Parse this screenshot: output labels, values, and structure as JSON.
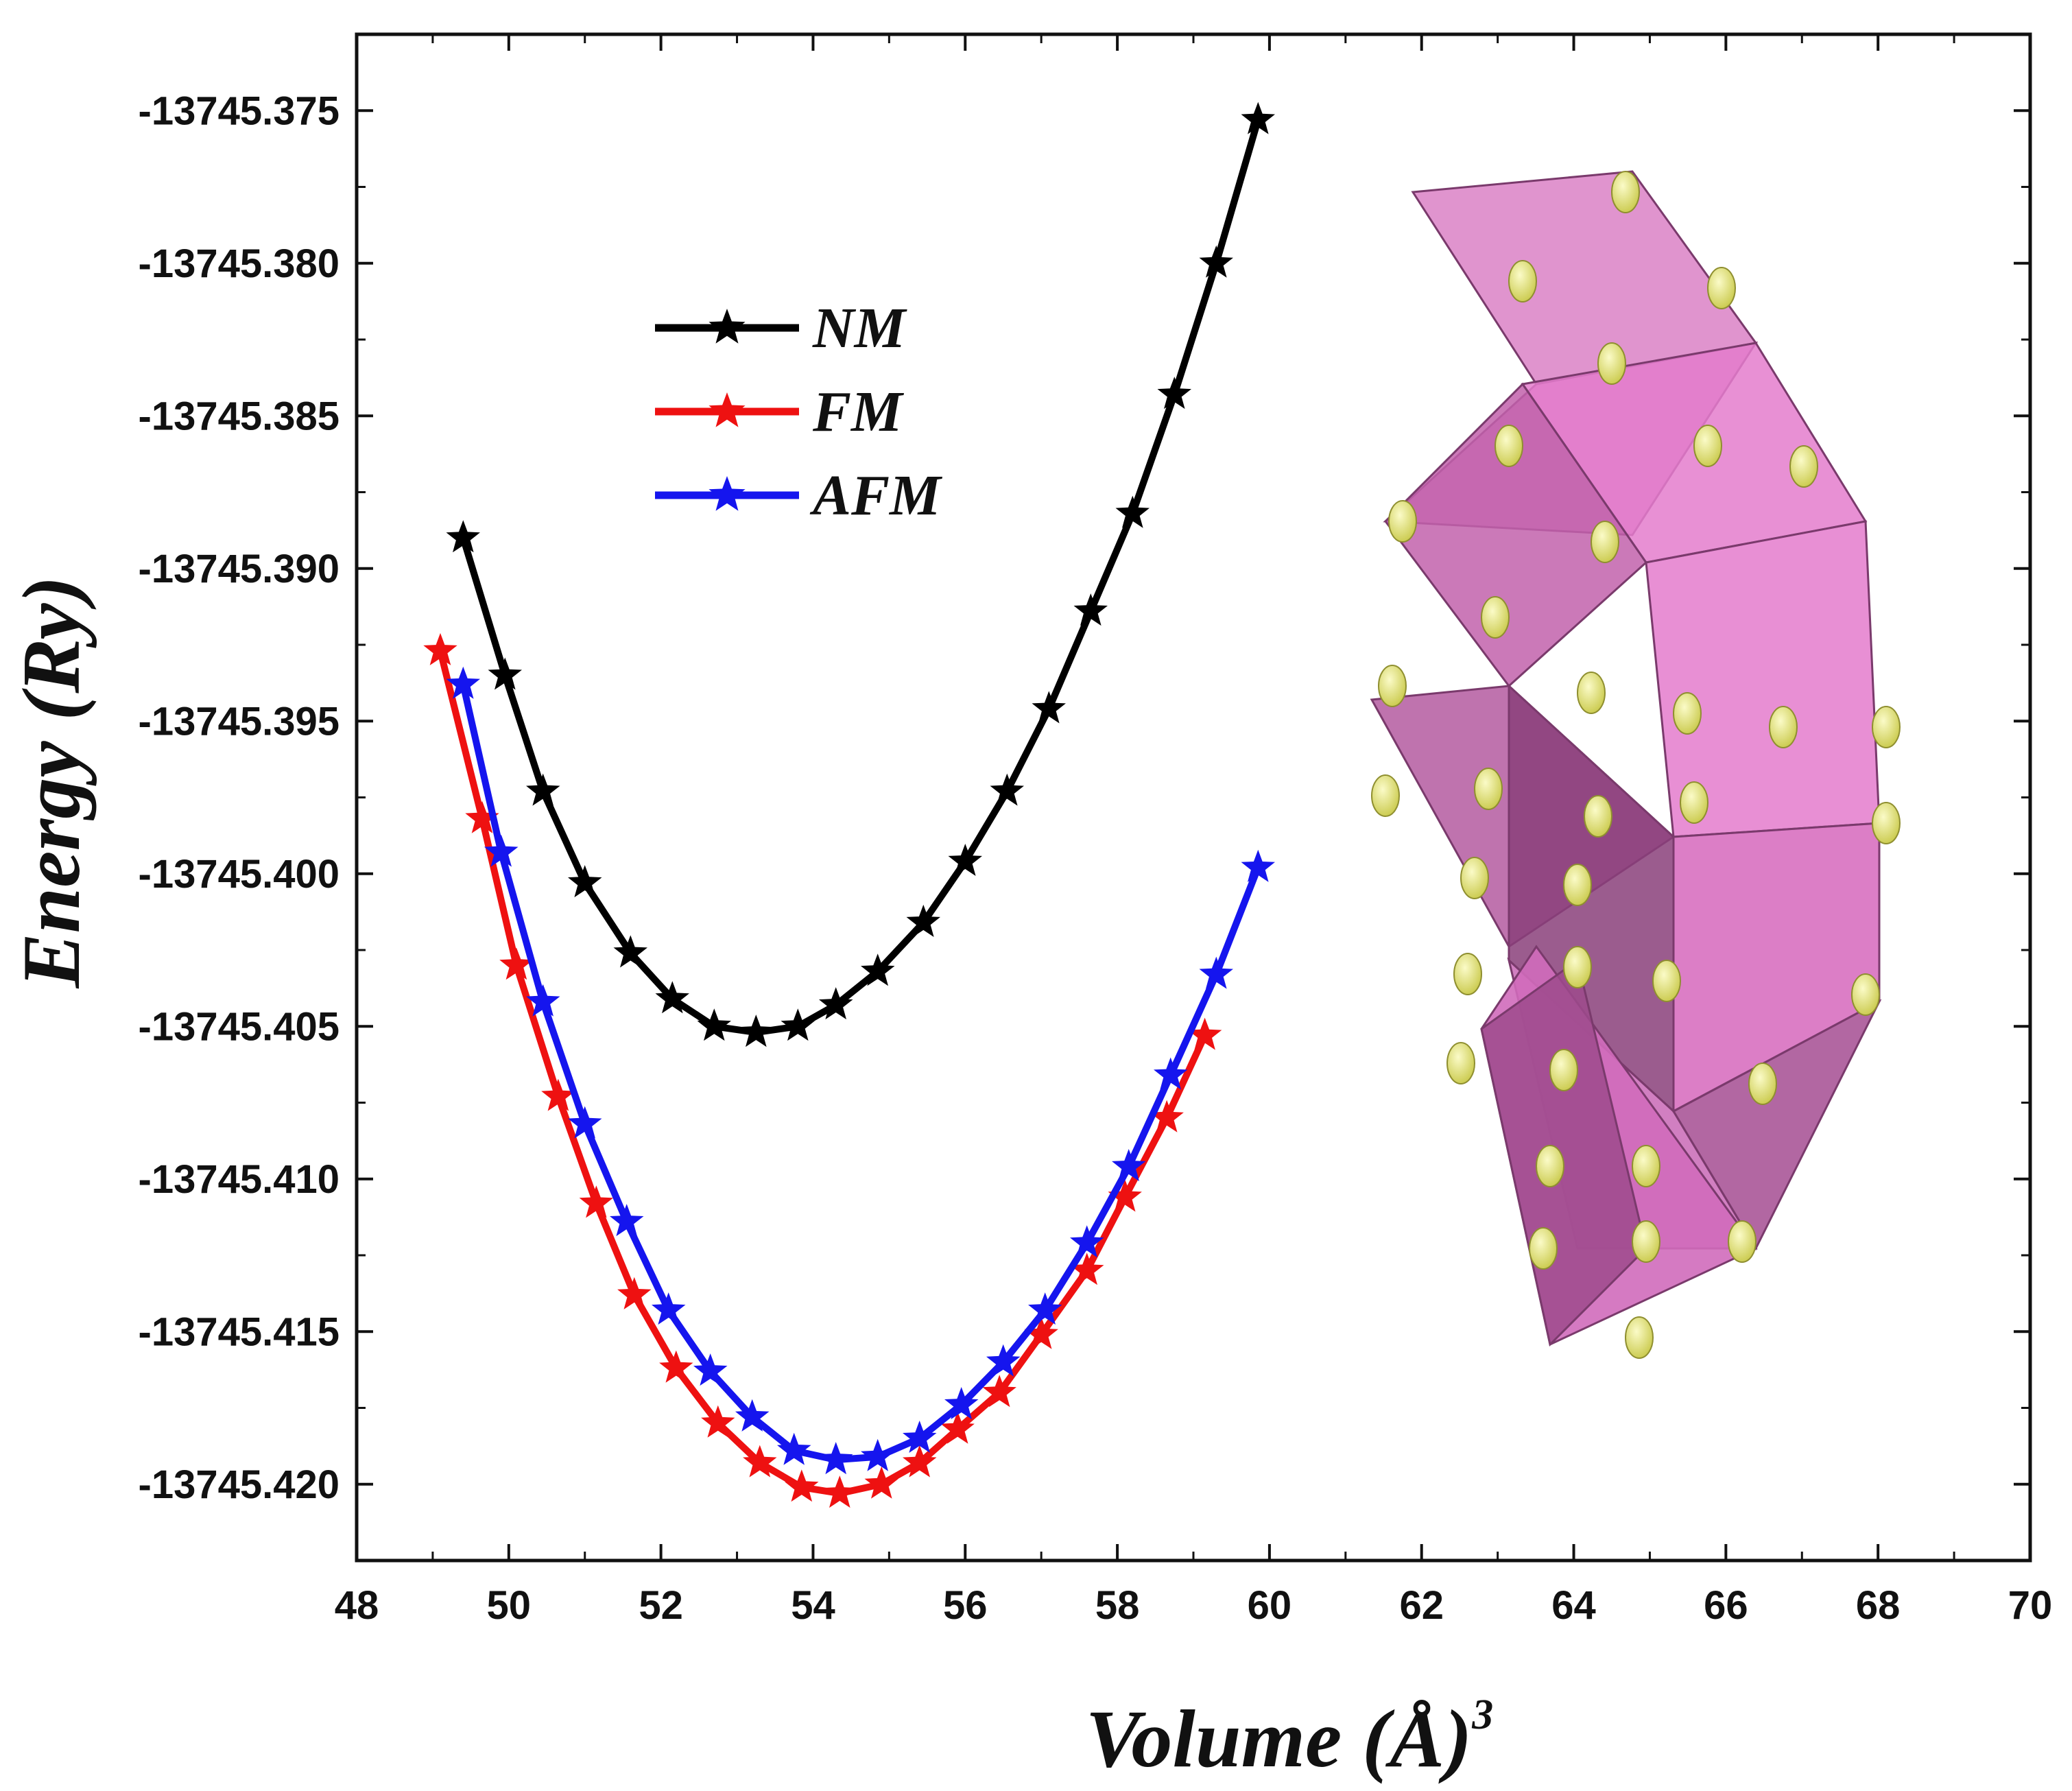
{
  "chart_data": {
    "type": "line",
    "xlabel": "Volume (Å)",
    "xlabel_superscript": "3",
    "ylabel": "Energy (Ry)",
    "xlim": [
      48,
      70
    ],
    "ylim": [
      -13745.4225,
      -13745.3725
    ],
    "xticks": [
      48,
      50,
      52,
      54,
      56,
      58,
      60,
      62,
      64,
      66,
      68,
      70
    ],
    "yticks": [
      -13745.375,
      -13745.38,
      -13745.385,
      -13745.39,
      -13745.395,
      -13745.4,
      -13745.405,
      -13745.41,
      -13745.415,
      -13745.42
    ],
    "xtick_labels": [
      "48",
      "50",
      "52",
      "54",
      "56",
      "58",
      "60",
      "62",
      "64",
      "66",
      "68",
      "70"
    ],
    "ytick_labels": [
      "-13745.375",
      "-13745.380",
      "-13745.385",
      "-13745.390",
      "-13745.395",
      "-13745.400",
      "-13745.405",
      "-13745.410",
      "-13745.415",
      "-13745.420"
    ],
    "legend_position": "upper-left",
    "series": [
      {
        "name": "NM",
        "color": "#000000",
        "marker": "star",
        "x": [
          49.4,
          49.95,
          50.45,
          51.0,
          51.6,
          52.15,
          52.7,
          53.25,
          53.8,
          54.3,
          54.85,
          55.45,
          56.0,
          56.55,
          57.1,
          57.65,
          58.2,
          58.75,
          59.3,
          59.85
        ],
        "y": [
          -13745.389,
          -13745.3935,
          -13745.3973,
          -13745.4003,
          -13745.4026,
          -13745.4041,
          -13745.405,
          -13745.4052,
          -13745.405,
          -13745.4043,
          -13745.4032,
          -13745.4016,
          -13745.3996,
          -13745.3973,
          -13745.3946,
          -13745.3914,
          -13745.3882,
          -13745.3843,
          -13745.38,
          -13745.3753
        ]
      },
      {
        "name": "FM",
        "color": "#ee1111",
        "marker": "star",
        "x": [
          49.1,
          49.65,
          50.1,
          50.65,
          51.15,
          51.65,
          52.2,
          52.75,
          53.3,
          53.85,
          54.35,
          54.9,
          55.4,
          55.9,
          56.45,
          57.0,
          57.6,
          58.1,
          58.65,
          59.15
        ],
        "y": [
          -13745.3927,
          -13745.3982,
          -13745.403,
          -13745.4073,
          -13745.4108,
          -13745.4138,
          -13745.4162,
          -13745.418,
          -13745.4193,
          -13745.4201,
          -13745.4203,
          -13745.42,
          -13745.4193,
          -13745.4182,
          -13745.417,
          -13745.4151,
          -13745.413,
          -13745.4106,
          -13745.408,
          -13745.4053
        ]
      },
      {
        "name": "AFM",
        "color": "#1515ee",
        "marker": "star",
        "x": [
          49.4,
          49.9,
          50.45,
          51.0,
          51.55,
          52.1,
          52.65,
          53.2,
          53.75,
          54.3,
          54.85,
          55.4,
          55.95,
          56.5,
          57.05,
          57.6,
          58.15,
          58.7,
          59.3,
          59.85
        ],
        "y": [
          -13745.3938,
          -13745.3993,
          -13745.4042,
          -13745.4082,
          -13745.4114,
          -13745.4143,
          -13745.4163,
          -13745.4178,
          -13745.4189,
          -13745.4192,
          -13745.4191,
          -13745.4185,
          -13745.4174,
          -13745.416,
          -13745.4143,
          -13745.4121,
          -13745.4096,
          -13745.4066,
          -13745.4033,
          -13745.3998
        ]
      }
    ]
  },
  "inset": {
    "description_label": "crystal structure",
    "face_color": "#d670be",
    "dark_face_color": "#8a3f7a",
    "atom_color": "#eaea80"
  }
}
